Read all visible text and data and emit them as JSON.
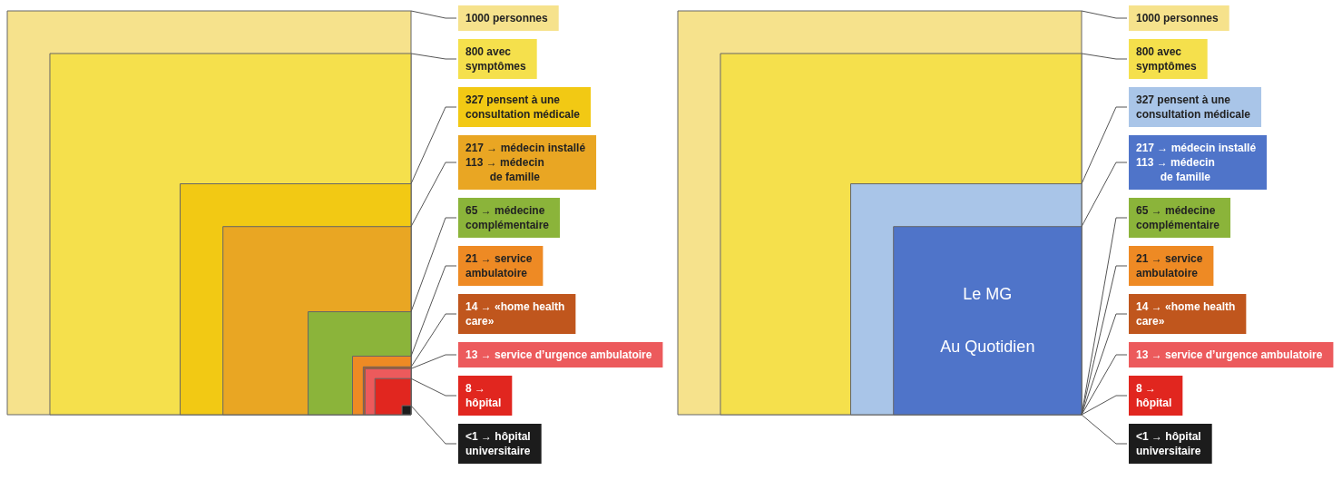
{
  "chart_data": [
    {
      "type": "other",
      "categories": [
        "personnes",
        "avec\nsymptômes",
        "pensent à une\nconsultation médicale",
        "→ médecin installé\n113 → médecin\n        de famille",
        "→ médecine\ncomplémentaire",
        "→ service\nambulatoire",
        "→ «home health\ncare»",
        "→ service d’urgence ambulatoire",
        "→\nhôpital",
        "→ hôpital\nuniversitaire"
      ],
      "values": [
        1000,
        800,
        327,
        217,
        65,
        21,
        14,
        13,
        8,
        0.5
      ],
      "value_labels": [
        "1000",
        "800",
        "327",
        "217",
        "65",
        "21",
        "14",
        "13",
        "8",
        "<1"
      ],
      "colors": [
        "#f6e28c",
        "#f5e04c",
        "#f2c914",
        "#e9a623",
        "#8bb43a",
        "#ee8a24",
        "#c0561d",
        "#ec5a5c",
        "#e1261f",
        "#1c1c1c"
      ]
    },
    {
      "type": "other",
      "categories": [
        "personnes",
        "avec\nsymptômes",
        "pensent à une\nconsultation médicale",
        "→ médecin installé\n113 → médecin\n        de famille",
        "65 → médecine\ncomplémentaire",
        "21 → service\nambulatoire",
        "14 → «home health\ncare»",
        "13 → service d’urgence ambulatoire",
        "8 →\nhôpital",
        "<1 → hôpital\nuniversitaire"
      ],
      "values": [
        1000,
        800,
        327,
        217,
        null,
        null,
        null,
        null,
        null,
        null
      ],
      "value_labels": [
        "1000",
        "800",
        "327",
        "217",
        null,
        null,
        null,
        null,
        null,
        null
      ],
      "colors": [
        "#f6e28c",
        "#f5e04c",
        "#a9c5e8",
        "#4f74c9",
        "#8bb43a",
        "#ee8a24",
        "#c0561d",
        "#ec5a5c",
        "#e1261f",
        "#1c1c1c"
      ],
      "annotations": [
        "Le MG",
        "Au Quotidien"
      ]
    }
  ]
}
